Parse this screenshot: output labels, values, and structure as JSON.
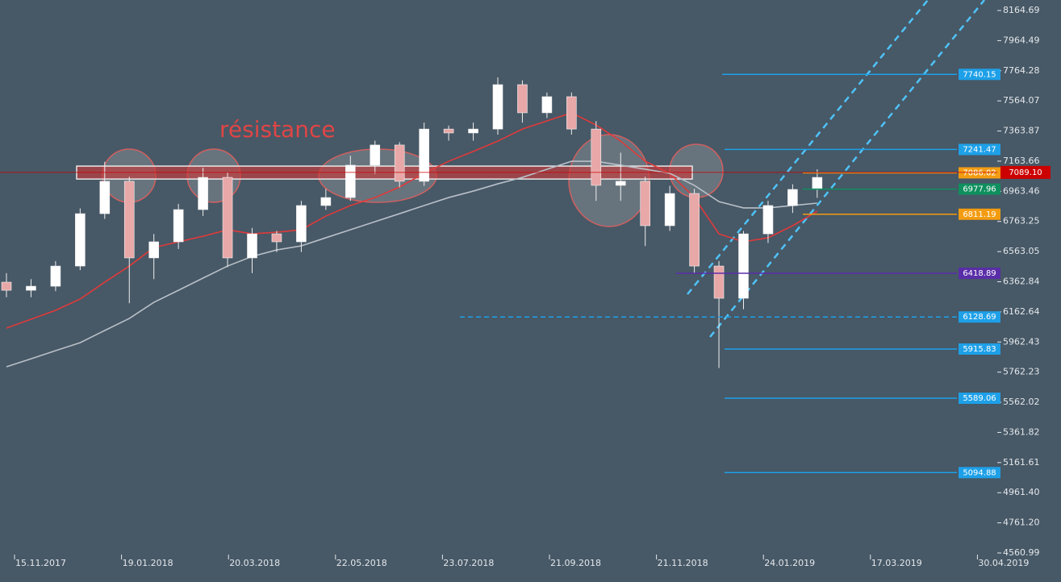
{
  "chart_data": {
    "type": "candlestick",
    "annotation": "résistance",
    "xticks": [
      "15.11.2017",
      "19.01.2018",
      "20.03.2018",
      "22.05.2018",
      "23.07.2018",
      "21.09.2018",
      "21.11.2018",
      "24.01.2019",
      "17.03.2019",
      "30.04.2019"
    ],
    "ylim": [
      4560.99,
      8234.3
    ],
    "yticks": [
      8164.69,
      7964.49,
      7764.28,
      7564.07,
      7363.87,
      7163.66,
      6963.46,
      6763.25,
      6563.05,
      6362.84,
      6162.64,
      5962.43,
      5762.23,
      5562.02,
      5361.82,
      5161.61,
      {
        "value": 4961.4,
        "label": "4961.40"
      },
      {
        "value": 4761.2,
        "label": "4761.20"
      },
      4560.99
    ],
    "candles": {
      "open": [
        6360,
        6306,
        6333,
        6467,
        6815,
        7030,
        6521,
        6628,
        6842,
        7056,
        6521,
        6681,
        6628,
        6869,
        6922,
        7137,
        7271,
        7030,
        7377,
        7351,
        7377,
        7672,
        7485,
        7592,
        7377,
        7003,
        7030,
        6735,
        6949,
        6467,
        6253,
        6681,
        6869,
        6976
      ],
      "high": [
        6420,
        6380,
        6500,
        6850,
        7160,
        7060,
        6680,
        6880,
        7120,
        7090,
        6720,
        6700,
        6900,
        6980,
        7200,
        7300,
        7290,
        7420,
        7400,
        7420,
        7720,
        7700,
        7620,
        7620,
        7430,
        7220,
        7060,
        7000,
        6980,
        6500,
        6700,
        6900,
        7010,
        7110
      ],
      "low": [
        6260,
        6260,
        6300,
        6440,
        6780,
        6220,
        6380,
        6580,
        6800,
        6460,
        6420,
        6560,
        6560,
        6840,
        6900,
        7080,
        6990,
        7000,
        7300,
        7300,
        7340,
        7420,
        7450,
        7340,
        6900,
        6900,
        6600,
        6700,
        6420,
        5790,
        6180,
        6620,
        6820,
        6920
      ],
      "close": [
        6306,
        6333,
        6467,
        6815,
        7030,
        6521,
        6628,
        6842,
        7056,
        6521,
        6681,
        6628,
        6869,
        6922,
        7137,
        7271,
        7030,
        7377,
        7351,
        7377,
        7672,
        7485,
        7592,
        7377,
        7003,
        7030,
        6735,
        6949,
        6467,
        6253,
        6681,
        6869,
        6976,
        7056
      ]
    },
    "moving_averages": [
      {
        "color": "#e03a3a",
        "values": [
          6055,
          6114,
          6173,
          6248,
          6360,
          6467,
          6590,
          6628,
          6665,
          6708,
          6681,
          6692,
          6708,
          6799,
          6869,
          6922,
          6992,
          7083,
          7163,
          7228,
          7297,
          7377,
          7431,
          7485,
          7404,
          7297,
          7163,
          7083,
          6922,
          6681,
          6628,
          6655,
          6735,
          6831
        ]
      },
      {
        "color": "#b8c0c8",
        "values": [
          5798,
          5851,
          5905,
          5958,
          6039,
          6119,
          6226,
          6306,
          6387,
          6467,
          6531,
          6574,
          6601,
          6655,
          6708,
          6762,
          6815,
          6869,
          6922,
          6965,
          7013,
          7056,
          7110,
          7163,
          7163,
          7137,
          7110,
          7083,
          7003,
          6895,
          6853,
          6853,
          6869,
          6885
        ]
      }
    ],
    "resistance_zone": [
      7045,
      7131
    ],
    "levels": [
      {
        "value": 7740.15,
        "color": "#1ea0e8"
      },
      {
        "value": 7241.47,
        "color": "#1ea0e8"
      },
      {
        "value": 7086.02,
        "color": "#f39c12"
      },
      {
        "value": 6977.96,
        "color": "#0f8f5f"
      },
      {
        "value": 6811.19,
        "color": "#f39c12"
      },
      {
        "value": 6418.89,
        "color": "#5a2da8"
      },
      {
        "value": 6128.69,
        "color": "#1ea0e8",
        "dashed": true
      },
      {
        "value": 5915.83,
        "color": "#1ea0e8"
      },
      {
        "value": 5589.06,
        "color": "#1ea0e8"
      },
      {
        "value": 5094.88,
        "color": "#1ea0e8"
      }
    ],
    "last_price": {
      "value": 7089.1,
      "label": "7089.10",
      "color": "#cc0000"
    }
  }
}
